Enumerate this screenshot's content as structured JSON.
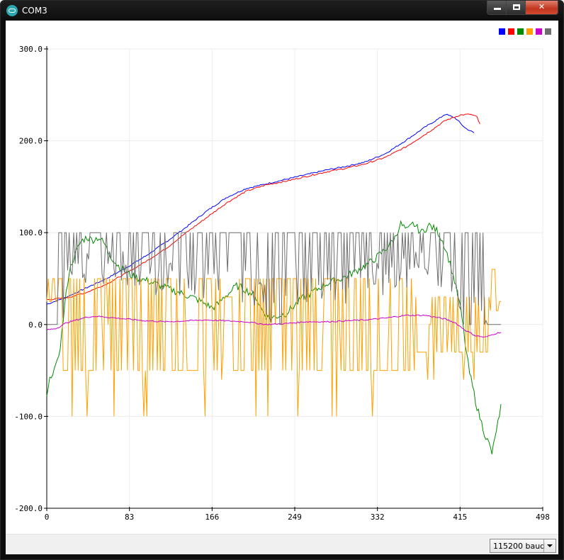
{
  "window": {
    "title": "COM3",
    "controls": [
      "minimize",
      "maximize",
      "close"
    ]
  },
  "baud": {
    "selected": "115200 baud"
  },
  "chart_data": {
    "type": "line",
    "xlim": [
      0,
      498
    ],
    "ylim": [
      -200,
      300
    ],
    "grid": true,
    "legend_placement": "top-right",
    "x_ticks": [
      "0",
      "83",
      "166",
      "249",
      "332",
      "415",
      "498"
    ],
    "y_ticks": [
      "300.0",
      "200.0",
      "100.0",
      "0.0",
      "-100.0",
      "-200.0"
    ],
    "x_tick_values": [
      0,
      83,
      166,
      249,
      332,
      415,
      498
    ],
    "y_tick_values": [
      300,
      200,
      100,
      0,
      -100,
      -200
    ],
    "series": [
      {
        "color": "#0000ff",
        "shape": "smooth",
        "points": [
          [
            0,
            22
          ],
          [
            20,
            30
          ],
          [
            40,
            40
          ],
          [
            60,
            50
          ],
          [
            80,
            62
          ],
          [
            100,
            75
          ],
          [
            120,
            90
          ],
          [
            140,
            106
          ],
          [
            160,
            123
          ],
          [
            180,
            138
          ],
          [
            200,
            148
          ],
          [
            220,
            153
          ],
          [
            240,
            158
          ],
          [
            260,
            163
          ],
          [
            280,
            168
          ],
          [
            300,
            172
          ],
          [
            320,
            177
          ],
          [
            340,
            186
          ],
          [
            360,
            200
          ],
          [
            380,
            215
          ],
          [
            395,
            225
          ],
          [
            400,
            229
          ],
          [
            410,
            225
          ],
          [
            420,
            214
          ],
          [
            430,
            208
          ]
        ]
      },
      {
        "color": "#ff0000",
        "shape": "smooth",
        "points": [
          [
            0,
            27
          ],
          [
            20,
            29
          ],
          [
            40,
            35
          ],
          [
            60,
            44
          ],
          [
            80,
            56
          ],
          [
            100,
            69
          ],
          [
            120,
            83
          ],
          [
            140,
            100
          ],
          [
            160,
            116
          ],
          [
            180,
            132
          ],
          [
            200,
            145
          ],
          [
            220,
            152
          ],
          [
            240,
            156
          ],
          [
            260,
            161
          ],
          [
            280,
            166
          ],
          [
            300,
            170
          ],
          [
            320,
            175
          ],
          [
            340,
            182
          ],
          [
            360,
            193
          ],
          [
            380,
            207
          ],
          [
            400,
            222
          ],
          [
            415,
            228
          ],
          [
            425,
            229
          ],
          [
            432,
            226
          ],
          [
            436,
            215
          ]
        ]
      },
      {
        "color": "#008c00",
        "shape": "jagged",
        "points": [
          [
            0,
            -80
          ],
          [
            4,
            -55
          ],
          [
            10,
            -45
          ],
          [
            14,
            -20
          ],
          [
            18,
            20
          ],
          [
            22,
            55
          ],
          [
            26,
            70
          ],
          [
            30,
            80
          ],
          [
            34,
            90
          ],
          [
            40,
            95
          ],
          [
            46,
            92
          ],
          [
            52,
            95
          ],
          [
            58,
            88
          ],
          [
            62,
            78
          ],
          [
            66,
            72
          ],
          [
            70,
            66
          ],
          [
            76,
            60
          ],
          [
            84,
            54
          ],
          [
            92,
            50
          ],
          [
            100,
            48
          ],
          [
            110,
            44
          ],
          [
            120,
            40
          ],
          [
            130,
            36
          ],
          [
            140,
            32
          ],
          [
            150,
            28
          ],
          [
            160,
            22
          ],
          [
            166,
            18
          ],
          [
            172,
            22
          ],
          [
            178,
            30
          ],
          [
            184,
            35
          ],
          [
            190,
            42
          ],
          [
            196,
            40
          ],
          [
            204,
            35
          ],
          [
            210,
            30
          ],
          [
            216,
            16
          ],
          [
            220,
            10
          ],
          [
            224,
            6
          ],
          [
            228,
            8
          ],
          [
            234,
            10
          ],
          [
            240,
            12
          ],
          [
            246,
            18
          ],
          [
            250,
            22
          ],
          [
            256,
            28
          ],
          [
            262,
            32
          ],
          [
            268,
            36
          ],
          [
            274,
            40
          ],
          [
            280,
            44
          ],
          [
            290,
            48
          ],
          [
            300,
            52
          ],
          [
            310,
            58
          ],
          [
            320,
            64
          ],
          [
            330,
            72
          ],
          [
            340,
            82
          ],
          [
            350,
            95
          ],
          [
            355,
            110
          ],
          [
            362,
            102
          ],
          [
            368,
            110
          ],
          [
            376,
            100
          ],
          [
            384,
            108
          ],
          [
            392,
            102
          ],
          [
            398,
            90
          ],
          [
            404,
            70
          ],
          [
            410,
            45
          ],
          [
            416,
            15
          ],
          [
            420,
            -20
          ],
          [
            424,
            -50
          ],
          [
            428,
            -70
          ],
          [
            432,
            -90
          ],
          [
            436,
            -105
          ],
          [
            440,
            -120
          ],
          [
            444,
            -130
          ],
          [
            447,
            -140
          ],
          [
            450,
            -125
          ],
          [
            452,
            -110
          ],
          [
            455,
            -100
          ],
          [
            457,
            -80
          ]
        ]
      },
      {
        "color": "#ffa000",
        "shape": "noise",
        "points": [
          [
            0,
            50
          ],
          [
            20,
            50
          ],
          [
            40,
            50
          ],
          [
            60,
            42
          ],
          [
            80,
            38
          ],
          [
            100,
            40
          ],
          [
            120,
            36
          ],
          [
            140,
            30
          ],
          [
            160,
            35
          ],
          [
            180,
            28
          ],
          [
            200,
            34
          ],
          [
            220,
            40
          ],
          [
            240,
            38
          ],
          [
            260,
            42
          ],
          [
            280,
            40
          ],
          [
            300,
            44
          ],
          [
            320,
            40
          ],
          [
            340,
            42
          ],
          [
            360,
            40
          ],
          [
            380,
            20
          ],
          [
            400,
            5
          ],
          [
            420,
            -20
          ],
          [
            440,
            -10
          ],
          [
            457,
            40
          ]
        ]
      },
      {
        "color": "#cc00cc",
        "shape": "smooth",
        "points": [
          [
            0,
            -6
          ],
          [
            10,
            -4
          ],
          [
            20,
            2
          ],
          [
            30,
            5
          ],
          [
            40,
            8
          ],
          [
            50,
            9
          ],
          [
            60,
            8
          ],
          [
            70,
            7
          ],
          [
            80,
            6
          ],
          [
            90,
            5
          ],
          [
            100,
            4
          ],
          [
            120,
            3
          ],
          [
            140,
            4
          ],
          [
            160,
            5
          ],
          [
            180,
            4
          ],
          [
            200,
            3
          ],
          [
            220,
            0
          ],
          [
            240,
            1
          ],
          [
            260,
            3
          ],
          [
            280,
            3
          ],
          [
            300,
            4
          ],
          [
            320,
            5
          ],
          [
            340,
            7
          ],
          [
            360,
            10
          ],
          [
            380,
            10
          ],
          [
            400,
            6
          ],
          [
            410,
            2
          ],
          [
            420,
            -6
          ],
          [
            430,
            -12
          ],
          [
            440,
            -14
          ],
          [
            450,
            -10
          ],
          [
            457,
            -8
          ]
        ]
      },
      {
        "color": "#6e6e6e",
        "shape": "noise",
        "points": [
          [
            0,
            0
          ],
          [
            10,
            0
          ],
          [
            20,
            40
          ],
          [
            40,
            60
          ],
          [
            60,
            60
          ],
          [
            80,
            60
          ],
          [
            100,
            50
          ],
          [
            120,
            50
          ],
          [
            140,
            50
          ],
          [
            160,
            45
          ],
          [
            180,
            50
          ],
          [
            200,
            40
          ],
          [
            220,
            30
          ],
          [
            235,
            0
          ],
          [
            250,
            40
          ],
          [
            270,
            45
          ],
          [
            290,
            40
          ],
          [
            310,
            45
          ],
          [
            330,
            50
          ],
          [
            350,
            55
          ],
          [
            370,
            60
          ],
          [
            390,
            60
          ],
          [
            400,
            55
          ],
          [
            410,
            30
          ],
          [
            420,
            5
          ],
          [
            457,
            0
          ]
        ]
      }
    ]
  }
}
